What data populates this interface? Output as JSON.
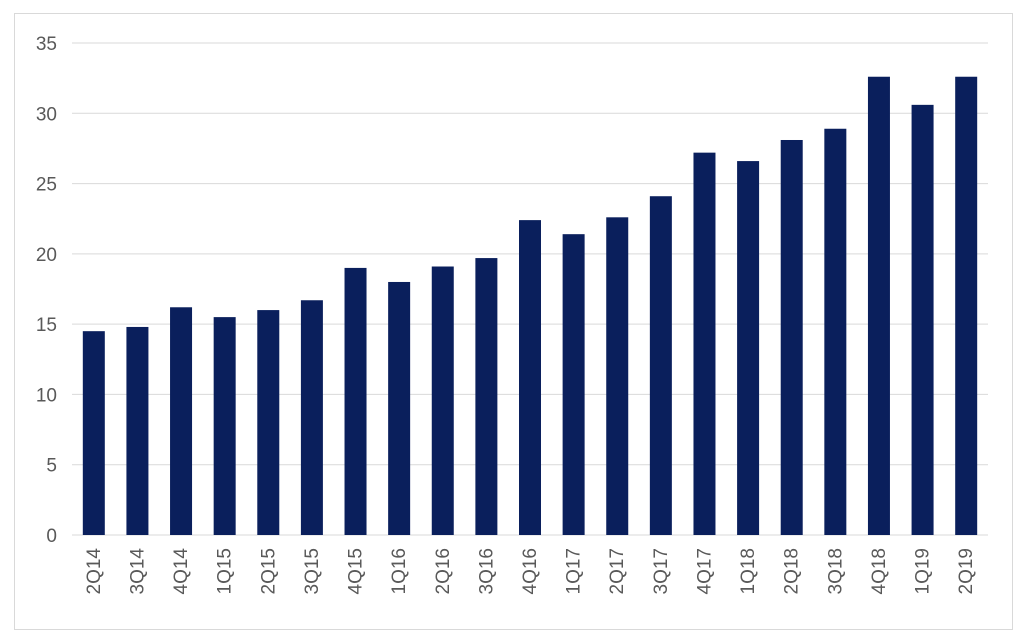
{
  "chart_data": {
    "type": "bar",
    "title": "",
    "xlabel": "",
    "ylabel": "",
    "categories": [
      "2Q14",
      "3Q14",
      "4Q14",
      "1Q15",
      "2Q15",
      "3Q15",
      "4Q15",
      "1Q16",
      "2Q16",
      "3Q16",
      "4Q16",
      "1Q17",
      "2Q17",
      "3Q17",
      "4Q17",
      "1Q18",
      "2Q18",
      "3Q18",
      "4Q18",
      "1Q19",
      "2Q19"
    ],
    "values": [
      14.5,
      14.8,
      16.2,
      15.5,
      16.0,
      16.7,
      19.0,
      18.0,
      19.1,
      19.7,
      22.4,
      21.4,
      22.6,
      24.1,
      27.2,
      26.6,
      28.1,
      28.9,
      32.6,
      30.6,
      32.6
    ],
    "ylim": [
      0,
      35
    ],
    "yticks": [
      0,
      5,
      10,
      15,
      20,
      25,
      30,
      35
    ],
    "grid": true,
    "legend": "none",
    "bar_color": "#0a1f5c",
    "grid_color": "#d9d9d9"
  }
}
